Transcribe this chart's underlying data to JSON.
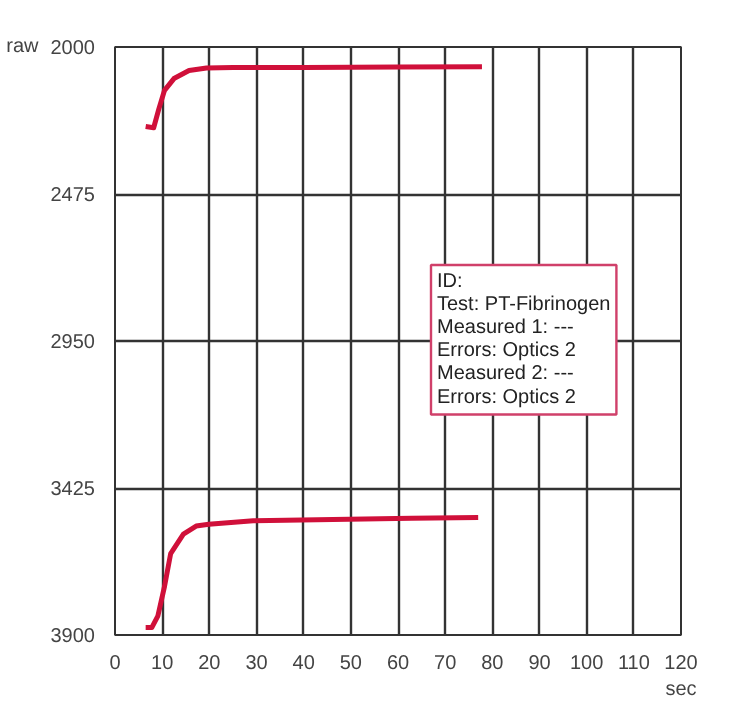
{
  "chart_data": {
    "type": "line",
    "xlabel": "sec",
    "ylabel": "raw",
    "xlim": [
      0,
      120
    ],
    "ylim": [
      3900,
      2000
    ],
    "xticks": [
      0,
      10,
      20,
      30,
      40,
      50,
      60,
      70,
      80,
      90,
      100,
      110,
      120
    ],
    "yticks": [
      2000,
      2475,
      2950,
      3425,
      3900
    ],
    "grid": true,
    "series": [
      {
        "color": "#d0103a",
        "x": [
          6.5,
          8.2,
          9.3,
          10.5,
          12.5,
          15.7,
          19.4,
          25,
          40,
          60,
          77.8
        ],
        "values": [
          2257,
          2261,
          2200,
          2140,
          2102,
          2076,
          2068,
          2066,
          2066,
          2065,
          2064
        ]
      },
      {
        "color": "#d0103a",
        "x": [
          6.5,
          7.8,
          9.1,
          10.5,
          11.8,
          14.5,
          17.2,
          19.9,
          29.3,
          62.9,
          77
        ],
        "values": [
          3876,
          3876,
          3838,
          3743,
          3637,
          3574,
          3548,
          3542,
          3531,
          3523,
          3520
        ]
      }
    ],
    "annotations": [
      "ID:",
      "Test: PT-Fibrinogen",
      "Measured 1: ---",
      "Errors: Optics 2",
      "Measured 2: ---",
      "Errors: Optics 2"
    ]
  }
}
